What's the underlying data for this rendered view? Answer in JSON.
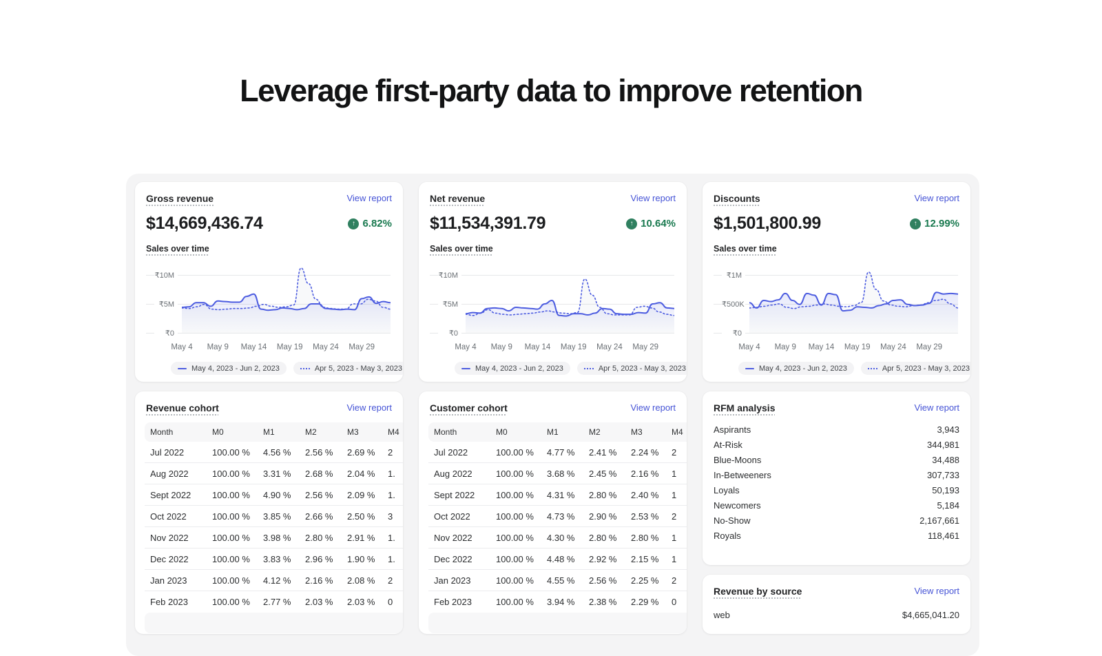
{
  "page_title": "Leverage first-party data to improve retention",
  "colors": {
    "link": "#4553d6",
    "chart_line": "#4c5ce0",
    "success_text": "#1a7a50",
    "success_circle": "#308060",
    "backdrop": "#f4f4f5"
  },
  "metric_cards": [
    {
      "title": "Gross revenue",
      "view_report": "View report",
      "value": "$14,669,436.74",
      "change": "6.82%",
      "subtitle": "Sales over time",
      "chart": {
        "type": "line",
        "y_ticks": [
          "₹10M",
          "₹5M",
          "₹0"
        ],
        "ymax": 10,
        "x_ticks": [
          "May 4",
          "May 9",
          "May 14",
          "May 19",
          "May 24",
          "May 29"
        ],
        "series": [
          {
            "name": "May 4, 2023 - Jun 2, 2023",
            "style": "solid",
            "values": [
              4.4,
              4.5,
              5.2,
              5.2,
              4.6,
              5.5,
              5.4,
              5.3,
              5.3,
              6.3,
              6.7,
              4.1,
              3.9,
              4.0,
              4.3,
              4.2,
              4.0,
              4.2,
              5.0,
              5.0,
              4.2,
              4.1,
              4.0,
              4.1,
              4.0,
              5.9,
              6.2,
              5.1,
              5.4,
              5.2
            ]
          },
          {
            "name": "Apr 5, 2023 - May 3, 2023",
            "style": "dotted",
            "values": [
              4.3,
              4.2,
              4.5,
              4.9,
              4.1,
              4.0,
              4.1,
              4.2,
              4.2,
              4.3,
              4.6,
              4.9,
              4.6,
              4.4,
              4.5,
              4.8,
              11.2,
              8.5,
              5.8,
              4.4,
              4.2,
              4.1,
              4.1,
              5.0,
              5.0,
              5.8,
              5.5,
              4.4,
              4.1
            ]
          }
        ]
      }
    },
    {
      "title": "Net revenue",
      "view_report": "View report",
      "value": "$11,534,391.79",
      "change": "10.64%",
      "subtitle": "Sales over time",
      "chart": {
        "type": "line",
        "y_ticks": [
          "₹10M",
          "₹5M",
          "₹0"
        ],
        "ymax": 10,
        "x_ticks": [
          "May 4",
          "May 9",
          "May 14",
          "May 19",
          "May 24",
          "May 29"
        ],
        "series": [
          {
            "name": "May 4, 2023 - Jun 2, 2023",
            "style": "solid",
            "values": [
              3.3,
              3.5,
              3.4,
              4.2,
              4.3,
              4.2,
              3.8,
              4.4,
              4.3,
              4.2,
              4.1,
              5.0,
              5.6,
              3.0,
              2.9,
              3.3,
              3.3,
              3.1,
              3.4,
              4.2,
              4.1,
              3.3,
              3.2,
              3.2,
              3.5,
              3.4,
              5.0,
              5.2,
              4.3,
              4.2
            ]
          },
          {
            "name": "Apr 5, 2023 - May 3, 2023",
            "style": "dotted",
            "values": [
              3.2,
              3.0,
              3.4,
              4.0,
              3.4,
              3.2,
              3.1,
              3.2,
              3.3,
              3.4,
              3.6,
              3.8,
              3.6,
              3.4,
              3.3,
              3.5,
              9.3,
              6.5,
              4.4,
              3.3,
              3.1,
              3.1,
              3.1,
              4.4,
              4.6,
              4.3,
              3.6,
              3.2,
              3.0
            ]
          }
        ]
      }
    },
    {
      "title": "Discounts",
      "view_report": "View report",
      "value": "$1,501,800.99",
      "change": "12.99%",
      "subtitle": "Sales over time",
      "chart": {
        "type": "line",
        "y_ticks": [
          "₹1M",
          "₹500K",
          "₹0"
        ],
        "ymax": 1,
        "x_ticks": [
          "May 4",
          "May 9",
          "May 14",
          "May 19",
          "May 24",
          "May 29"
        ],
        "series": [
          {
            "name": "May 4, 2023 - Jun 2, 2023",
            "style": "solid",
            "values": [
              0.52,
              0.43,
              0.56,
              0.54,
              0.57,
              0.68,
              0.56,
              0.49,
              0.68,
              0.65,
              0.48,
              0.68,
              0.66,
              0.38,
              0.39,
              0.45,
              0.44,
              0.43,
              0.47,
              0.5,
              0.56,
              0.57,
              0.49,
              0.47,
              0.48,
              0.51,
              0.7,
              0.67,
              0.68,
              0.67
            ]
          },
          {
            "name": "Apr 5, 2023 - May 3, 2023",
            "style": "dotted",
            "values": [
              0.43,
              0.44,
              0.46,
              0.48,
              0.5,
              0.44,
              0.42,
              0.45,
              0.46,
              0.48,
              0.5,
              0.48,
              0.46,
              0.45,
              0.47,
              0.52,
              1.05,
              0.75,
              0.55,
              0.48,
              0.46,
              0.45,
              0.47,
              0.48,
              0.52,
              0.56,
              0.58,
              0.5,
              0.43
            ]
          }
        ]
      }
    }
  ],
  "cohort_cards": [
    {
      "title": "Revenue cohort",
      "view_report": "View report",
      "columns": [
        "Month",
        "M0",
        "M1",
        "M2",
        "M3",
        "M4"
      ],
      "rows": [
        [
          "Jul 2022",
          "100.00 %",
          "4.56 %",
          "2.56 %",
          "2.69 %",
          "2"
        ],
        [
          "Aug 2022",
          "100.00 %",
          "3.31 %",
          "2.68 %",
          "2.04 %",
          "1."
        ],
        [
          "Sept 2022",
          "100.00 %",
          "4.90 %",
          "2.56 %",
          "2.09 %",
          "1."
        ],
        [
          "Oct 2022",
          "100.00 %",
          "3.85 %",
          "2.66 %",
          "2.50 %",
          "3"
        ],
        [
          "Nov 2022",
          "100.00 %",
          "3.98 %",
          "2.80 %",
          "2.91 %",
          "1."
        ],
        [
          "Dec 2022",
          "100.00 %",
          "3.83 %",
          "2.96 %",
          "1.90 %",
          "1."
        ],
        [
          "Jan 2023",
          "100.00 %",
          "4.12 %",
          "2.16 %",
          "2.08 %",
          "2"
        ],
        [
          "Feb 2023",
          "100.00 %",
          "2.77 %",
          "2.03 %",
          "2.03 %",
          "0"
        ]
      ]
    },
    {
      "title": "Customer cohort",
      "view_report": "View report",
      "columns": [
        "Month",
        "M0",
        "M1",
        "M2",
        "M3",
        "M4"
      ],
      "rows": [
        [
          "Jul 2022",
          "100.00 %",
          "4.77 %",
          "2.41 %",
          "2.24 %",
          "2"
        ],
        [
          "Aug 2022",
          "100.00 %",
          "3.68 %",
          "2.45 %",
          "2.16 %",
          "1"
        ],
        [
          "Sept 2022",
          "100.00 %",
          "4.31 %",
          "2.80 %",
          "2.40 %",
          "1"
        ],
        [
          "Oct 2022",
          "100.00 %",
          "4.73 %",
          "2.90 %",
          "2.53 %",
          "2"
        ],
        [
          "Nov 2022",
          "100.00 %",
          "4.30 %",
          "2.80 %",
          "2.80 %",
          "1"
        ],
        [
          "Dec 2022",
          "100.00 %",
          "4.48 %",
          "2.92 %",
          "2.15 %",
          "1"
        ],
        [
          "Jan 2023",
          "100.00 %",
          "4.55 %",
          "2.56 %",
          "2.25 %",
          "2"
        ],
        [
          "Feb 2023",
          "100.00 %",
          "3.94 %",
          "2.38 %",
          "2.29 %",
          "0"
        ]
      ]
    }
  ],
  "rfm_card": {
    "title": "RFM analysis",
    "view_report": "View report",
    "rows": [
      {
        "label": "Aspirants",
        "value": "3,943"
      },
      {
        "label": "At-Risk",
        "value": "344,981"
      },
      {
        "label": "Blue-Moons",
        "value": "34,488"
      },
      {
        "label": "In-Betweeners",
        "value": "307,733"
      },
      {
        "label": "Loyals",
        "value": "50,193"
      },
      {
        "label": "Newcomers",
        "value": "5,184"
      },
      {
        "label": "No-Show",
        "value": "2,167,661"
      },
      {
        "label": "Royals",
        "value": "118,461"
      }
    ]
  },
  "revenue_by_source_card": {
    "title": "Revenue by source",
    "view_report": "View report",
    "rows": [
      {
        "label": "web",
        "value": "$4,665,041.20"
      }
    ]
  }
}
